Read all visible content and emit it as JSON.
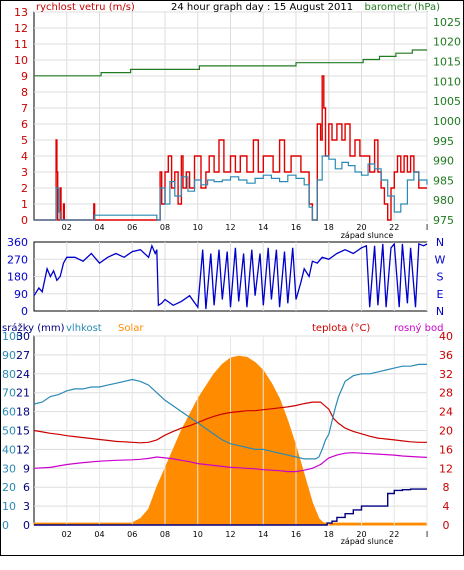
{
  "chart_data": [
    {
      "type": "line",
      "title": "24 hour graph day : 15 August 2011",
      "left_label": "rychlost vetru (m/s)",
      "right_label": "barometr (hPa)",
      "x_tick_labels": [
        "02",
        "04",
        "06",
        "08",
        "10",
        "12",
        "14",
        "16",
        "18",
        "20",
        "22",
        "I"
      ],
      "x_caption": "západ slunce",
      "left_ticks": [
        "0",
        "1",
        "2",
        "3",
        "4",
        "5",
        "6",
        "7",
        "8",
        "9",
        "10",
        "11",
        "12",
        "13"
      ],
      "right_ticks": [
        "975",
        "980",
        "985",
        "990",
        "995",
        "1000",
        "1005",
        "1010",
        "1015",
        "1020",
        "1025"
      ],
      "ylim_left": [
        0,
        13
      ],
      "ylim_right": [
        975,
        1027.5
      ],
      "grid": true,
      "colors": {
        "gust": "#e00000",
        "wind": "#2a8ab5",
        "pressure": "#207a20",
        "left_axis": "#cc0000",
        "right_axis": "#207a20"
      },
      "series": {
        "gust": {
          "x": [
            0,
            1.3,
            1.35,
            1.4,
            1.45,
            1.6,
            1.65,
            1.8,
            1.85,
            3.6,
            3.65,
            3.7,
            7.5,
            7.7,
            7.8,
            8.0,
            8.2,
            8.4,
            8.6,
            8.8,
            9.0,
            9.1,
            9.3,
            9.5,
            9.8,
            10.2,
            10.5,
            10.7,
            11.0,
            11.3,
            11.6,
            12.0,
            12.3,
            12.6,
            13.0,
            13.4,
            13.7,
            14.0,
            14.3,
            14.6,
            15.0,
            15.3,
            15.7,
            16.0,
            16.3,
            16.8,
            17.0,
            17.1,
            17.3,
            17.5,
            17.6,
            17.7,
            17.8,
            18.0,
            18.2,
            18.5,
            18.8,
            19.0,
            19.3,
            19.6,
            19.9,
            20.2,
            20.5,
            20.8,
            21.0,
            21.2,
            21.4,
            21.6,
            21.8,
            22.0,
            22.2,
            22.4,
            22.6,
            22.8,
            23.0,
            23.2,
            23.5,
            24
          ],
          "y": [
            0,
            0,
            5,
            3,
            0,
            2,
            0,
            1,
            0,
            0,
            1,
            0,
            0,
            3,
            1,
            3,
            4,
            2,
            3,
            1,
            4,
            2,
            3,
            2,
            4,
            2,
            3,
            4,
            3,
            5,
            3,
            4,
            3,
            4,
            3,
            5,
            3,
            4,
            4,
            3,
            5,
            3,
            4,
            4,
            3,
            1,
            0,
            0,
            6,
            5,
            9,
            7,
            4,
            6,
            5,
            6,
            5,
            6,
            4,
            5,
            4,
            4,
            3,
            5,
            3,
            2,
            1,
            0,
            2,
            3,
            4,
            3,
            4,
            3,
            4,
            3,
            2,
            2
          ]
        },
        "wind": {
          "x": [
            0,
            1.3,
            1.35,
            1.5,
            1.6,
            3.6,
            3.7,
            7.5,
            7.7,
            8.0,
            8.3,
            8.6,
            9.0,
            9.4,
            9.8,
            10.2,
            10.6,
            11.0,
            11.5,
            12.0,
            12.5,
            13.0,
            13.5,
            14.0,
            14.5,
            15.0,
            15.5,
            16.0,
            16.5,
            16.8,
            17.0,
            17.1,
            17.3,
            17.6,
            18.0,
            18.4,
            18.8,
            19.2,
            19.6,
            20.0,
            20.4,
            20.8,
            21.2,
            21.6,
            22.0,
            22.4,
            22.8,
            23.2,
            23.5,
            24
          ],
          "y": [
            0,
            0,
            2,
            0.5,
            0,
            0,
            0.3,
            0,
            2,
            1,
            2.4,
            1.5,
            2.7,
            1.8,
            2.5,
            2.2,
            2.5,
            2.4,
            2.5,
            2.7,
            2.5,
            2.3,
            2.6,
            2.8,
            2.6,
            2.4,
            2.8,
            2.6,
            2.2,
            0.8,
            0,
            0,
            2.5,
            4,
            3.8,
            3.2,
            3.6,
            3.4,
            3,
            2.8,
            3.5,
            3.2,
            2.5,
            1.5,
            0.5,
            1,
            2.5,
            3,
            2.5,
            2.2
          ]
        },
        "pressure": {
          "x": [
            0,
            4.0,
            4.1,
            5.8,
            5.9,
            10.0,
            10.1,
            15.9,
            16.0,
            20.0,
            20.1,
            21.0,
            21.1,
            22.0,
            22.1,
            23.0,
            23.1,
            24
          ],
          "y": [
            1011.4,
            1011.4,
            1012.2,
            1012.2,
            1013.0,
            1013.0,
            1013.9,
            1013.9,
            1014.7,
            1014.7,
            1015.5,
            1015.5,
            1016.3,
            1016.3,
            1017.1,
            1017.1,
            1017.9,
            1017.9
          ]
        }
      }
    },
    {
      "type": "line",
      "title": "",
      "series_name": "wind direction",
      "left_ticks": [
        "0",
        "90",
        "180",
        "270",
        "360"
      ],
      "right_ticks": [
        "N",
        "E",
        "S",
        "W",
        "N"
      ],
      "x_tick_labels": [],
      "ylim": [
        0,
        360
      ],
      "grid": true,
      "colors": {
        "line": "#0000cc",
        "axis": "#0000cc"
      },
      "series": {
        "direction": {
          "x": [
            0,
            0.3,
            0.5,
            0.8,
            1.0,
            1.2,
            1.4,
            1.6,
            1.8,
            2.0,
            2.5,
            3.0,
            3.5,
            4.0,
            4.5,
            5.0,
            5.5,
            6.0,
            6.5,
            7.0,
            7.2,
            7.4,
            7.5,
            7.6,
            7.8,
            8.0,
            8.5,
            9.0,
            9.5,
            10.0,
            10.3,
            10.5,
            10.8,
            11.0,
            11.3,
            11.5,
            11.8,
            12.0,
            12.3,
            12.5,
            12.8,
            13.0,
            13.3,
            13.5,
            13.8,
            14.0,
            14.3,
            14.5,
            14.8,
            15.0,
            15.3,
            15.5,
            15.8,
            16.0,
            16.3,
            16.5,
            16.8,
            17.0,
            17.3,
            17.6,
            18.0,
            18.5,
            19.0,
            19.5,
            20.0,
            20.3,
            20.5,
            20.8,
            21.0,
            21.3,
            21.5,
            21.8,
            22.0,
            22.3,
            22.5,
            22.8,
            23.0,
            23.3,
            23.5,
            23.8,
            24
          ],
          "y": [
            80,
            120,
            100,
            220,
            180,
            210,
            160,
            180,
            250,
            280,
            280,
            260,
            300,
            250,
            280,
            300,
            280,
            310,
            320,
            280,
            340,
            300,
            320,
            30,
            40,
            60,
            30,
            50,
            80,
            20,
            320,
            10,
            300,
            30,
            320,
            60,
            310,
            20,
            330,
            50,
            300,
            20,
            320,
            80,
            300,
            30,
            330,
            60,
            320,
            20,
            310,
            40,
            330,
            60,
            150,
            220,
            180,
            260,
            250,
            280,
            270,
            300,
            320,
            300,
            330,
            340,
            20,
            340,
            30,
            350,
            20,
            330,
            350,
            20,
            350,
            40,
            330,
            20,
            350,
            340,
            350
          ]
        }
      }
    },
    {
      "type": "line",
      "title": "",
      "labels": {
        "rain": "srážky (mm)",
        "humidity": "vlhkost",
        "solar": "Solar",
        "temperature": "teplota (°C)",
        "dewpoint": "rosný bod"
      },
      "x_tick_labels": [
        "02",
        "04",
        "06",
        "08",
        "10",
        "12",
        "14",
        "16",
        "18",
        "20",
        "22",
        "I"
      ],
      "x_caption": "západ slunce",
      "humidity_ticks": [
        "0",
        "10",
        "20",
        "30",
        "40",
        "50",
        "60",
        "70",
        "80",
        "90",
        "100"
      ],
      "rain_ticks": [
        "0",
        "3",
        "6",
        "9",
        "12",
        "15",
        "18",
        "21",
        "24",
        "27",
        "30"
      ],
      "temp_ticks": [
        "0",
        "4",
        "8",
        "12",
        "16",
        "20",
        "24",
        "28",
        "32",
        "36",
        "40"
      ],
      "ylim_humidity": [
        0,
        100
      ],
      "ylim_rain": [
        0,
        30
      ],
      "ylim_temp": [
        0,
        40
      ],
      "grid": true,
      "colors": {
        "rain": "#000080",
        "humidity": "#2a8ab5",
        "solar": "#ff8c00",
        "temperature": "#cc0000",
        "dewpoint": "#cc00cc",
        "rain_axis": "#000080",
        "humidity_axis": "#2a8ab5",
        "temp_axis": "#cc0000"
      },
      "series": {
        "humidity": {
          "x": [
            0,
            0.5,
            1,
            1.5,
            2,
            2.5,
            3,
            3.5,
            4,
            4.5,
            5,
            5.5,
            6,
            6.5,
            7,
            7.5,
            8,
            8.5,
            9,
            9.5,
            10,
            10.5,
            11,
            11.5,
            12,
            12.5,
            13,
            13.5,
            14,
            14.5,
            15,
            15.5,
            16,
            16.5,
            17,
            17.2,
            17.4,
            17.6,
            17.8,
            18,
            18.2,
            18.4,
            18.6,
            18.8,
            19,
            19.5,
            20,
            20.5,
            21,
            21.5,
            22,
            22.5,
            23,
            23.5,
            24
          ],
          "y": [
            64,
            65,
            68,
            69,
            71,
            72,
            72,
            73,
            73,
            74,
            75,
            76,
            77,
            76,
            74,
            70,
            66,
            63,
            60,
            57,
            54,
            51,
            48,
            45,
            43,
            42,
            41,
            40,
            40,
            39,
            38,
            37,
            36,
            35,
            35,
            35,
            36,
            40,
            45,
            48,
            55,
            62,
            68,
            72,
            76,
            79,
            80,
            80,
            81,
            82,
            83,
            84,
            84,
            85,
            85
          ]
        },
        "solar": {
          "x": [
            0,
            6.0,
            6.1,
            6.5,
            7.0,
            7.5,
            8.0,
            8.5,
            9.0,
            9.5,
            10.0,
            10.5,
            11.0,
            11.5,
            12.0,
            12.5,
            13.0,
            13.5,
            14.0,
            14.5,
            15.0,
            15.5,
            16.0,
            16.5,
            17.0,
            17.4,
            17.6,
            17.7,
            24
          ],
          "y": [
            0.3,
            0.3,
            0.5,
            1,
            2.5,
            6,
            9,
            12,
            15,
            17.5,
            20,
            22,
            24,
            25.5,
            26.5,
            26.8,
            26.6,
            25.8,
            24.5,
            22.5,
            20,
            16.5,
            12.5,
            8,
            3.5,
            1,
            0.5,
            0.3,
            0.3
          ]
        },
        "temperature": {
          "x": [
            0,
            0.5,
            1,
            1.5,
            2,
            2.5,
            3,
            3.5,
            4,
            4.5,
            5,
            5.5,
            6,
            6.5,
            7,
            7.5,
            8,
            8.5,
            9,
            9.5,
            10,
            10.5,
            11,
            11.5,
            12,
            12.5,
            13,
            13.5,
            14,
            14.5,
            15,
            15.5,
            16,
            16.5,
            17,
            17.5,
            18,
            18.3,
            18.6,
            19,
            19.5,
            20,
            20.5,
            21,
            21.5,
            22,
            22.5,
            23,
            23.5,
            24
          ],
          "y": [
            20,
            19.7,
            19.4,
            19.2,
            18.9,
            18.7,
            18.5,
            18.3,
            18.1,
            17.9,
            17.7,
            17.6,
            17.5,
            17.4,
            17.5,
            18,
            19,
            19.8,
            20.5,
            21,
            21.7,
            22.4,
            23,
            23.5,
            23.8,
            24,
            24.2,
            24.2,
            24.4,
            24.6,
            24.8,
            25,
            25.3,
            25.7,
            26,
            26,
            24.5,
            22.5,
            21.5,
            20.5,
            19.8,
            19.3,
            18.8,
            18.4,
            18.2,
            18,
            17.8,
            17.6,
            17.5,
            17.5
          ]
        },
        "dewpoint": {
          "x": [
            0,
            1,
            2,
            3,
            4,
            5,
            6,
            6.5,
            7,
            7.5,
            8,
            8.5,
            9,
            9.5,
            10,
            10.5,
            11,
            11.5,
            12,
            12.5,
            13,
            13.5,
            14,
            14.5,
            15,
            15.5,
            16,
            16.5,
            17,
            17.5,
            18,
            18.5,
            19,
            19.5,
            20,
            20.5,
            21,
            21.5,
            22,
            22.5,
            23,
            23.5,
            24
          ],
          "y": [
            12,
            12.2,
            12.8,
            13.2,
            13.5,
            13.7,
            13.8,
            13.9,
            14.1,
            14.4,
            14.2,
            14,
            13.7,
            13.4,
            13,
            12.8,
            12.6,
            12.4,
            12.2,
            12.1,
            12,
            11.9,
            11.7,
            11.6,
            11.5,
            11.3,
            11.3,
            11.6,
            12,
            12.8,
            14.2,
            14.8,
            15.2,
            15.3,
            15.2,
            15.1,
            15,
            14.9,
            14.8,
            14.6,
            14.5,
            14.4,
            14.3
          ]
        },
        "rain": {
          "x": [
            0,
            17.6,
            17.9,
            18.2,
            18.5,
            19,
            19.5,
            20,
            20.5,
            21,
            21.4,
            21.6,
            22,
            22.5,
            23,
            23.5,
            24
          ],
          "y": [
            0,
            0,
            0.3,
            0.6,
            1.2,
            1.8,
            2.4,
            3.0,
            3.0,
            3.0,
            3.0,
            5.0,
            5.5,
            5.6,
            5.7,
            5.7,
            5.7
          ]
        }
      }
    }
  ]
}
